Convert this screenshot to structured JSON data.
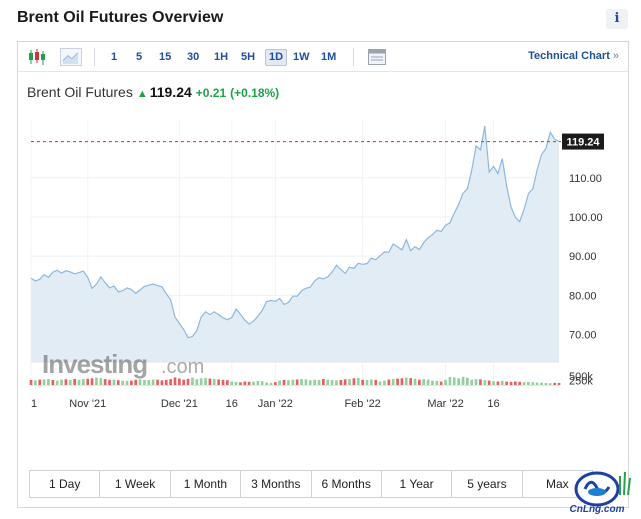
{
  "page": {
    "title": "Brent Oil Futures Overview",
    "info_icon": "i"
  },
  "toolbar": {
    "chart_type_icons": [
      "candlestick-icon",
      "area-chart-icon"
    ],
    "timeframes": [
      {
        "label": "1",
        "active": false
      },
      {
        "label": "5",
        "active": false
      },
      {
        "label": "15",
        "active": false
      },
      {
        "label": "30",
        "active": false
      },
      {
        "label": "1H",
        "active": false
      },
      {
        "label": "5H",
        "active": false
      },
      {
        "label": "1D",
        "active": true
      },
      {
        "label": "1W",
        "active": false
      },
      {
        "label": "1M",
        "active": false
      }
    ],
    "tools_icon": "calendar-table-icon",
    "technical_chart_label": "Technical Chart",
    "technical_chart_chevron": "»"
  },
  "quote": {
    "name": "Brent Oil Futures",
    "direction": "up",
    "price": "119.24",
    "change": "+0.21",
    "change_pct": "(+0.18%)",
    "up_color": "#1ca24b"
  },
  "chart_data": {
    "type": "area",
    "title": "",
    "current_price_label": "119.24",
    "y_ticks": [
      "110.00",
      "100.00",
      "90.00",
      "80.00",
      "70.00"
    ],
    "y_tick_values": [
      110,
      100,
      90,
      80,
      70
    ],
    "ylim": [
      63,
      125
    ],
    "volume_ticks": [
      "500k",
      "250k"
    ],
    "volume_tick_values": [
      500000,
      250000
    ],
    "volume_max": 620000,
    "x_tick_labels": [
      {
        "label": "1",
        "index": 0
      },
      {
        "label": "Nov '21",
        "index": 13
      },
      {
        "label": "Dec '21",
        "index": 34
      },
      {
        "label": "16",
        "index": 46
      },
      {
        "label": "Jan '22",
        "index": 56
      },
      {
        "label": "Feb '22",
        "index": 76
      },
      {
        "label": "Mar '22",
        "index": 95
      },
      {
        "label": "16",
        "index": 106
      }
    ],
    "series": [
      {
        "name": "Brent Oil Futures",
        "values": [
          84.4,
          83.7,
          84.1,
          85.3,
          84.6,
          85.9,
          86.4,
          85.7,
          86.3,
          86.0,
          85.5,
          85.8,
          86.2,
          84.6,
          81.8,
          82.9,
          84.7,
          83.2,
          81.9,
          82.4,
          80.9,
          81.2,
          81.9,
          81.5,
          80.5,
          81.4,
          82.3,
          82.6,
          82.9,
          82.5,
          82.2,
          80.4,
          78.9,
          74.5,
          72.8,
          71.3,
          69.2,
          69.5,
          71.0,
          74.5,
          75.8,
          75.1,
          75.8,
          75.1,
          74.3,
          73.8,
          74.3,
          76.5,
          75.2,
          73.7,
          72.7,
          73.4,
          74.7,
          76.2,
          78.4,
          78.7,
          78.5,
          79.2,
          77.7,
          78.2,
          79.8,
          79.8,
          81.2,
          81.8,
          82.1,
          83.7,
          84.5,
          84.2,
          84.7,
          86.0,
          87.7,
          86.6,
          85.6,
          87.2,
          86.9,
          88.2,
          87.9,
          88.1,
          89.5,
          89.1,
          90.1,
          91.1,
          91.0,
          93.1,
          92.4,
          91.6,
          94.2,
          91.4,
          92.4,
          91.7,
          93.5,
          94.7,
          95.5,
          96.6,
          96.3,
          97.9,
          98.5,
          101.0,
          103.2,
          106.0,
          107.2,
          111.9,
          118.1,
          117.1,
          123.2,
          111.5,
          112.9,
          111.1,
          114.9,
          108.0,
          102.6,
          99.9,
          98.8,
          102.0,
          106.0,
          107.2,
          112.1,
          115.9,
          117.5,
          121.6,
          119.9,
          119.24
        ],
        "color": "#8db8dc",
        "fill": "#e2ecf5"
      }
    ],
    "volume": {
      "values": [
        290,
        260,
        300,
        310,
        330,
        280,
        250,
        300,
        320,
        290,
        340,
        300,
        330,
        350,
        380,
        420,
        390,
        330,
        300,
        310,
        270,
        250,
        230,
        240,
        300,
        320,
        290,
        280,
        310,
        300,
        260,
        290,
        330,
        420,
        360,
        300,
        350,
        420,
        330,
        380,
        400,
        360,
        330,
        310,
        290,
        270,
        200,
        170,
        150,
        200,
        180,
        190,
        230,
        210,
        140,
        120,
        160,
        250,
        290,
        270,
        300,
        310,
        330,
        320,
        270,
        300,
        290,
        340,
        300,
        280,
        260,
        290,
        320,
        330,
        380,
        400,
        300,
        280,
        310,
        290,
        200,
        250,
        310,
        340,
        360,
        380,
        420,
        390,
        350,
        300,
        330,
        310,
        250,
        230,
        190,
        290,
        450,
        420,
        380,
        460,
        410,
        300,
        330,
        320,
        280,
        250,
        210,
        200,
        230,
        190,
        170,
        200,
        180,
        160,
        170,
        160,
        140,
        130,
        110,
        100,
        120,
        110
      ],
      "scale": 1000,
      "directions": [
        "d",
        "u",
        "d",
        "u",
        "u",
        "d",
        "u",
        "u",
        "d",
        "u",
        "d",
        "u",
        "u",
        "d",
        "d",
        "u",
        "u",
        "d",
        "d",
        "u",
        "d",
        "u",
        "u",
        "d",
        "d",
        "u",
        "u",
        "u",
        "u",
        "d",
        "d",
        "d",
        "d",
        "d",
        "d",
        "d",
        "d",
        "u",
        "u",
        "u",
        "u",
        "d",
        "u",
        "d",
        "d",
        "d",
        "u",
        "u",
        "d",
        "d",
        "d",
        "u",
        "u",
        "u",
        "u",
        "u",
        "d",
        "u",
        "d",
        "u",
        "u",
        "d",
        "u",
        "u",
        "u",
        "u",
        "u",
        "d",
        "u",
        "u",
        "u",
        "d",
        "d",
        "u",
        "d",
        "u",
        "d",
        "u",
        "u",
        "d",
        "u",
        "u",
        "d",
        "u",
        "d",
        "d",
        "u",
        "d",
        "u",
        "d",
        "u",
        "u",
        "u",
        "u",
        "d",
        "u",
        "u",
        "u",
        "u",
        "u",
        "u",
        "u",
        "u",
        "d",
        "u",
        "d",
        "u",
        "d",
        "u",
        "d",
        "d",
        "d",
        "d",
        "u",
        "u",
        "u",
        "u",
        "u",
        "u",
        "u",
        "d",
        "d"
      ],
      "up_color": "#95cf9d",
      "down_color": "#e45f62"
    },
    "current_price_line_color": "#d0313b",
    "grid": true,
    "legend": "none"
  },
  "watermark": {
    "brand": "Investing",
    "suffix": ".com"
  },
  "ranges": [
    "1 Day",
    "1 Week",
    "1 Month",
    "3 Months",
    "6 Months",
    "1 Year",
    "5 years",
    "Max"
  ],
  "corner_logo": {
    "text": "CnLng.com"
  }
}
